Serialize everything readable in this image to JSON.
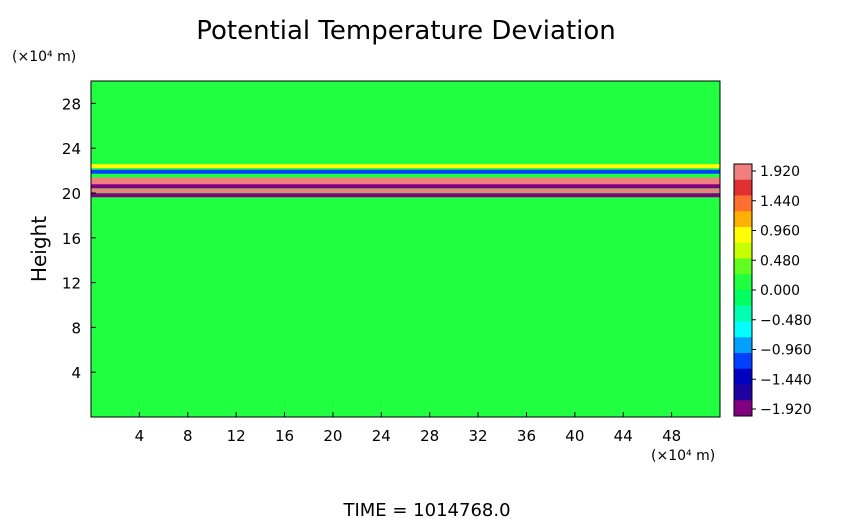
{
  "chart_data": {
    "type": "heatmap",
    "title": "Potential Temperature Deviation",
    "ylabel": "Height",
    "y_unit": "(×10⁴ m)",
    "x_unit": "(×10⁴ m)",
    "footer": "TIME  =  1014768.0",
    "xlim": [
      0,
      52
    ],
    "ylim": [
      0,
      30
    ],
    "x_ticks": [
      "4",
      "8",
      "12",
      "16",
      "20",
      "24",
      "28",
      "32",
      "36",
      "40",
      "44",
      "48"
    ],
    "y_ticks": [
      "4",
      "8",
      "12",
      "16",
      "20",
      "24",
      "28"
    ],
    "colorbar": {
      "range": [
        -2.16,
        2.16
      ],
      "labels": [
        "1.920",
        "1.440",
        "0.960",
        "0.480",
        "0.000",
        "−0.480",
        "−0.960",
        "−1.440",
        "−1.920"
      ],
      "colors": [
        "#f08080",
        "#e03030",
        "#ff7030",
        "#ffb000",
        "#ffff00",
        "#c8ff00",
        "#60ff20",
        "#20ff40",
        "#00ff60",
        "#00ffb0",
        "#00ffff",
        "#00a0ff",
        "#0040ff",
        "#0000c0",
        "#2000a0",
        "#800080"
      ]
    },
    "background_value": 0.1,
    "bands": [
      {
        "height": 22.4,
        "value": 0.9
      },
      {
        "height": 21.9,
        "value": -1.3
      },
      {
        "height": 21.2,
        "value": 1.9
      },
      {
        "height": 20.9,
        "value": 2.1
      },
      {
        "height": 20.6,
        "value": -1.9
      },
      {
        "height": 20.2,
        "value": 2.0
      },
      {
        "height": 19.8,
        "value": -2.0
      }
    ]
  }
}
